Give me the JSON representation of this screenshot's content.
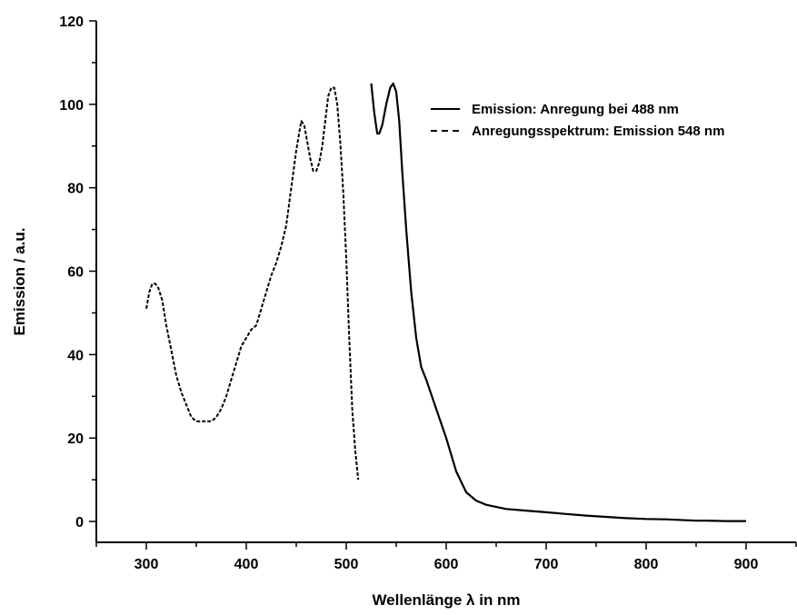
{
  "chart_data": {
    "type": "line",
    "xlabel": "Wellenlänge λ in nm",
    "ylabel": "Emission / a.u.",
    "xlim": [
      250,
      950
    ],
    "ylim": [
      -5,
      120
    ],
    "x_ticks": [
      300,
      400,
      500,
      600,
      700,
      800,
      900
    ],
    "y_ticks": [
      0,
      20,
      40,
      60,
      80,
      100,
      120
    ],
    "grid": false,
    "legend_position": "top-right",
    "series": [
      {
        "name": "Emission: Anregung bei 488 nm",
        "style": "solid",
        "color": "#000000",
        "x": [
          525,
          528,
          531,
          533,
          536,
          540,
          544,
          547,
          550,
          553,
          556,
          560,
          565,
          570,
          575,
          580,
          590,
          600,
          610,
          620,
          630,
          640,
          660,
          680,
          700,
          720,
          740,
          760,
          780,
          800,
          820,
          840,
          850,
          860,
          880,
          900
        ],
        "y": [
          105,
          98,
          93,
          93,
          95,
          100,
          104,
          105,
          103,
          96,
          84,
          70,
          55,
          44,
          37,
          34,
          27,
          20,
          12,
          7,
          5,
          4,
          3,
          2.6,
          2.2,
          1.8,
          1.4,
          1.1,
          0.8,
          0.6,
          0.5,
          0.3,
          0.2,
          0.2,
          0.1,
          0.1
        ]
      },
      {
        "name": "Anregungsspektrum: Emission 548 nm",
        "style": "dashed",
        "color": "#000000",
        "x": [
          300,
          303,
          306,
          309,
          312,
          316,
          320,
          325,
          330,
          335,
          340,
          345,
          350,
          355,
          360,
          365,
          370,
          375,
          380,
          385,
          390,
          395,
          400,
          405,
          410,
          415,
          420,
          425,
          430,
          435,
          440,
          445,
          450,
          455,
          458,
          461,
          464,
          467,
          470,
          473,
          476,
          479,
          482,
          485,
          488,
          491,
          494,
          497,
          500,
          503,
          506,
          509,
          512
        ],
        "y": [
          51,
          55,
          57,
          57,
          56,
          53,
          47,
          41,
          35,
          31,
          28,
          25,
          24,
          24,
          24,
          24,
          25,
          27,
          30,
          34,
          38,
          42,
          44,
          46,
          47,
          51,
          55,
          59,
          62,
          66,
          71,
          80,
          89,
          96,
          95,
          91,
          87,
          84,
          84,
          86,
          90,
          96,
          102,
          104,
          104,
          100,
          91,
          79,
          63,
          44,
          27,
          17,
          10
        ]
      }
    ]
  }
}
